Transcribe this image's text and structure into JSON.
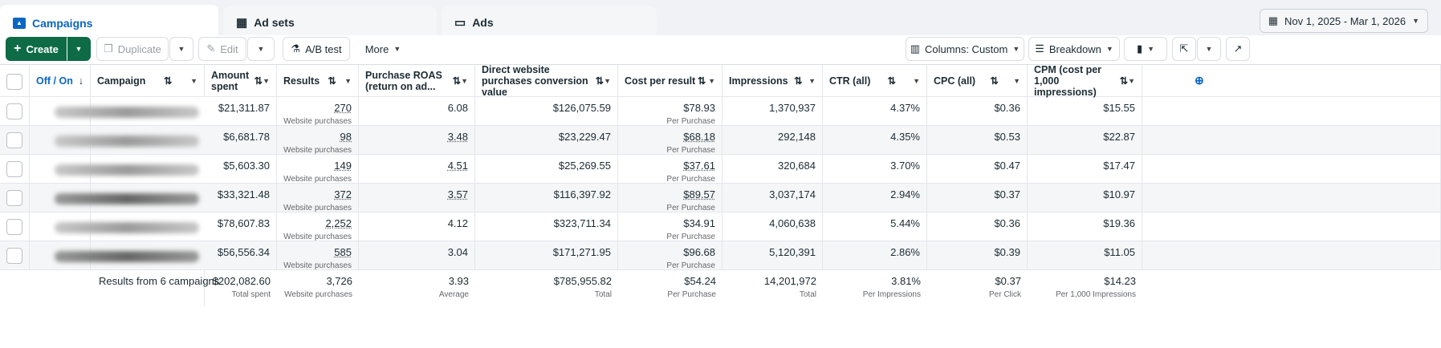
{
  "tabs": [
    {
      "label": "Campaigns",
      "icon": "campaign-folder-icon",
      "active": true
    },
    {
      "label": "Ad sets",
      "icon": "grid-icon"
    },
    {
      "label": "Ads",
      "icon": "ad-window-icon"
    }
  ],
  "date_range": "Nov 1, 2025 - Mar 1, 2026",
  "toolbar": {
    "create": "Create",
    "duplicate": "Duplicate",
    "edit": "Edit",
    "ab_test": "A/B test",
    "more": "More",
    "columns": "Columns: Custom",
    "breakdown": "Breakdown"
  },
  "columns": [
    "Off / On",
    "Campaign",
    "Amount spent",
    "Results",
    "Purchase ROAS (return on ad...",
    "Direct website purchases conversion value",
    "Cost per result",
    "Impressions",
    "CTR (all)",
    "CPC (all)",
    "CPM (cost per 1,000 impressions)"
  ],
  "rows": [
    {
      "spent": "$21,311.87",
      "results": "270",
      "results_sub": "Website purchases",
      "roas": "6.08",
      "value": "$126,075.59",
      "cpr": "$78.93",
      "cpr_sub": "Per Purchase",
      "impr": "1,370,937",
      "ctr": "4.37%",
      "cpc": "$0.36",
      "cpm": "$15.55"
    },
    {
      "spent": "$6,681.78",
      "results": "98",
      "results_sub": "Website purchases",
      "roas": "3.48",
      "value": "$23,229.47",
      "cpr": "$68.18",
      "cpr_sub": "Per Purchase",
      "impr": "292,148",
      "ctr": "4.35%",
      "cpc": "$0.53",
      "cpm": "$22.87"
    },
    {
      "spent": "$5,603.30",
      "results": "149",
      "results_sub": "Website purchases",
      "roas": "4.51",
      "value": "$25,269.55",
      "cpr": "$37.61",
      "cpr_sub": "Per Purchase",
      "impr": "320,684",
      "ctr": "3.70%",
      "cpc": "$0.47",
      "cpm": "$17.47"
    },
    {
      "spent": "$33,321.48",
      "results": "372",
      "results_sub": "Website purchases",
      "roas": "3.57",
      "value": "$116,397.92",
      "cpr": "$89.57",
      "cpr_sub": "Per Purchase",
      "impr": "3,037,174",
      "ctr": "2.94%",
      "cpc": "$0.37",
      "cpm": "$10.97"
    },
    {
      "spent": "$78,607.83",
      "results": "2,252",
      "results_sub": "Website purchases",
      "roas": "4.12",
      "value": "$323,711.34",
      "cpr": "$34.91",
      "cpr_sub": "Per Purchase",
      "impr": "4,060,638",
      "ctr": "5.44%",
      "cpc": "$0.36",
      "cpm": "$19.36"
    },
    {
      "spent": "$56,556.34",
      "results": "585",
      "results_sub": "Website purchases",
      "roas": "3.04",
      "value": "$171,271.95",
      "cpr": "$96.68",
      "cpr_sub": "Per Purchase",
      "impr": "5,120,391",
      "ctr": "2.86%",
      "cpc": "$0.39",
      "cpm": "$11.05"
    }
  ],
  "totals": {
    "label": "Results from 6 campaigns",
    "spent": "$202,082.60",
    "spent_sub": "Total spent",
    "results": "3,726",
    "results_sub": "Website purchases",
    "roas": "3.93",
    "roas_sub": "Average",
    "value": "$785,955.82",
    "value_sub": "Total",
    "cpr": "$54.24",
    "cpr_sub": "Per Purchase",
    "impr": "14,201,972",
    "impr_sub": "Total",
    "ctr": "3.81%",
    "ctr_sub": "Per Impressions",
    "cpc": "$0.37",
    "cpc_sub": "Per Click",
    "cpm": "$14.23",
    "cpm_sub": "Per 1,000 Impressions"
  },
  "colors": {
    "accent": "#0a66c2",
    "create_green": "#0d6b45"
  }
}
